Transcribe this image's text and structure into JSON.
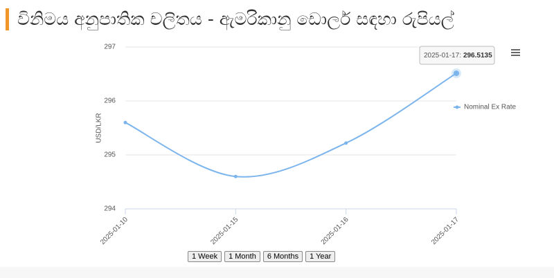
{
  "title": "විනිමය අනුපාතික චලිතය - ඇමරිකානු ඩොලර් සඳහා රුපියල්",
  "buttons": [
    "1 Week",
    "1 Month",
    "6 Months",
    "1 Year"
  ],
  "chart_data": {
    "type": "line",
    "y_label": "USD/LKR",
    "categories": [
      "2025-01-10",
      "2025-01-15",
      "2025-01-16",
      "2025-01-17"
    ],
    "series": [
      {
        "name": "Nominal Ex Rate",
        "color": "#7cb5ec",
        "values": [
          295.6,
          294.6,
          295.22,
          296.5135
        ]
      }
    ],
    "ylim": [
      294,
      297
    ],
    "yticks": [
      294,
      295,
      296,
      297
    ],
    "grid": true,
    "legend": "right",
    "tooltip_label": "2025-01-17:"
  }
}
